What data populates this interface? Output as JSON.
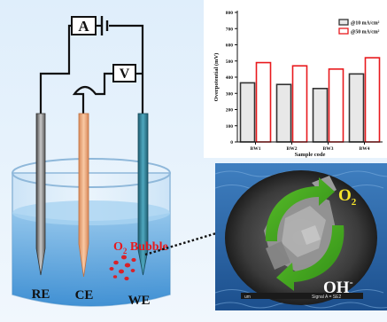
{
  "cell": {
    "ammeter_label": "A",
    "voltmeter_label": "V",
    "electrodes": {
      "re": "RE",
      "ce": "CE",
      "we": "WE"
    },
    "bubble_label_o": "O",
    "bubble_label_sub": "2",
    "bubble_label_rest": " Bubble"
  },
  "micrograph": {
    "product_o": "O",
    "product_sub": "2",
    "reactant": "OH",
    "reactant_sup": "-",
    "scale_text_left": "um",
    "scale_text_right": "Signal A = SE2"
  },
  "chart_data": {
    "type": "bar",
    "categories": [
      "BW1",
      "BW2",
      "BW3",
      "BW4"
    ],
    "series": [
      {
        "name": "@10 mA/cm²",
        "values": [
          365,
          355,
          330,
          420
        ]
      },
      {
        "name": "@50 mA/cm²",
        "values": [
          490,
          470,
          450,
          520
        ]
      }
    ],
    "xlabel": "Sample code",
    "ylabel": "Overpotential (mV)",
    "ylim": [
      0,
      800
    ],
    "yticks": [
      0,
      100,
      200,
      300,
      400,
      500,
      600,
      700,
      800
    ],
    "legend_position": "top-right",
    "grid": false,
    "colors": {
      "series1": "#333333",
      "series2": "#e8191d"
    }
  }
}
